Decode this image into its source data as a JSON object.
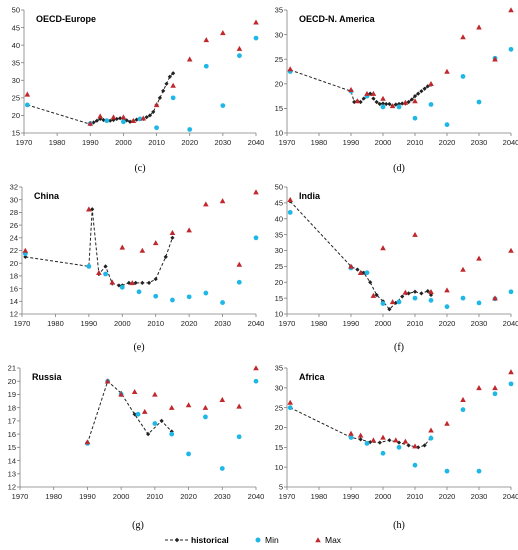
{
  "chart_data": [
    {
      "type": "scatter",
      "title": "OECD-Europe",
      "panel_label": "(c)",
      "xlim": [
        1970,
        2040
      ],
      "ylim": [
        15,
        50
      ],
      "xticks": [
        1970,
        1980,
        1990,
        2000,
        2010,
        2020,
        2030,
        2040
      ],
      "yticks": [
        15,
        20,
        25,
        30,
        35,
        40,
        45,
        50
      ],
      "grid": false,
      "series": [
        {
          "name": "historical",
          "kind": "line",
          "x": [
            1971,
            1990,
            1991,
            1992,
            1993,
            1994,
            1995,
            1996,
            1997,
            1998,
            1999,
            2000,
            2001,
            2002,
            2003,
            2004,
            2005,
            2006,
            2007,
            2008,
            2009,
            2010,
            2011,
            2012,
            2013,
            2014,
            2015
          ],
          "y": [
            23,
            17.5,
            18,
            18.5,
            19,
            18.7,
            18.4,
            18.5,
            18.7,
            19,
            19.2,
            19,
            18.6,
            18.2,
            18.5,
            18.8,
            19,
            19,
            19.5,
            20,
            21,
            23,
            25,
            27,
            29,
            31,
            32
          ]
        },
        {
          "name": "Min",
          "kind": "marker",
          "x": [
            1971,
            1990,
            1995,
            2000,
            2005,
            2010,
            2015,
            2020,
            2025,
            2030,
            2035,
            2040
          ],
          "y": [
            23,
            17.7,
            18.5,
            18.2,
            19,
            16.5,
            25,
            16,
            34,
            22.8,
            37,
            42
          ]
        },
        {
          "name": "Max",
          "kind": "marker",
          "x": [
            1971,
            1990,
            1993,
            1997,
            2000,
            2003,
            2006,
            2010,
            2015,
            2020,
            2025,
            2030,
            2035,
            2040
          ],
          "y": [
            26,
            17.7,
            19.8,
            19.5,
            19.5,
            18.5,
            19.2,
            23,
            28.5,
            36,
            41.5,
            43.5,
            39,
            46.5
          ]
        }
      ]
    },
    {
      "type": "scatter",
      "title": "OECD-N. America",
      "panel_label": "(d)",
      "xlim": [
        1970,
        2040
      ],
      "ylim": [
        10,
        35
      ],
      "xticks": [
        1970,
        1980,
        1990,
        2000,
        2010,
        2020,
        2030,
        2040
      ],
      "yticks": [
        10,
        15,
        20,
        25,
        30,
        35
      ],
      "grid": false,
      "series": [
        {
          "name": "historical",
          "kind": "line",
          "x": [
            1971,
            1990,
            1991,
            1992,
            1993,
            1994,
            1995,
            1996,
            1997,
            1998,
            1999,
            2000,
            2001,
            2002,
            2003,
            2004,
            2005,
            2006,
            2007,
            2008,
            2009,
            2010,
            2011,
            2012,
            2013,
            2014,
            2015
          ],
          "y": [
            22.8,
            18.5,
            16.3,
            16.5,
            16.3,
            17,
            17.5,
            18,
            17,
            16.3,
            15.9,
            16,
            15.9,
            15.9,
            15.5,
            15.8,
            15.9,
            16,
            16,
            16.3,
            16.8,
            17.5,
            18,
            18.5,
            19,
            19.5,
            19.8
          ]
        },
        {
          "name": "Min",
          "kind": "marker",
          "x": [
            1971,
            1990,
            1995,
            2000,
            2005,
            2010,
            2015,
            2020,
            2025,
            2030,
            2035,
            2040
          ],
          "y": [
            22.5,
            18.5,
            17.5,
            15.3,
            15.3,
            13,
            15.8,
            11.7,
            21.5,
            16.3,
            25.2,
            27
          ]
        },
        {
          "name": "Max",
          "kind": "marker",
          "x": [
            1971,
            1990,
            1992,
            1995,
            1997,
            2000,
            2003,
            2007,
            2010,
            2015,
            2020,
            2025,
            2030,
            2035,
            2040
          ],
          "y": [
            23,
            18.8,
            16.5,
            18,
            18,
            17,
            15.5,
            16.2,
            16.5,
            20,
            22.5,
            29.5,
            31.5,
            25,
            35
          ]
        }
      ]
    },
    {
      "type": "scatter",
      "title": "China",
      "panel_label": "(e)",
      "xlim": [
        1970,
        2040
      ],
      "ylim": [
        12,
        32
      ],
      "xticks": [
        1970,
        1980,
        1990,
        2000,
        2010,
        2020,
        2030,
        2040
      ],
      "yticks": [
        12,
        14,
        16,
        18,
        20,
        22,
        24,
        26,
        28,
        30,
        32
      ],
      "grid": false,
      "series": [
        {
          "name": "historical",
          "kind": "line",
          "x": [
            1971,
            1990,
            1991,
            1993,
            1995,
            1997,
            1999,
            2000,
            2002,
            2004,
            2006,
            2008,
            2010,
            2013,
            2015
          ],
          "y": [
            21,
            19.5,
            28.5,
            18.3,
            19.5,
            16.8,
            16.5,
            16.5,
            16.9,
            16.9,
            16.9,
            16.9,
            17.5,
            21,
            24
          ]
        },
        {
          "name": "Min",
          "kind": "marker",
          "x": [
            1971,
            1990,
            1995,
            2000,
            2005,
            2010,
            2015,
            2020,
            2025,
            2030,
            2035,
            2040
          ],
          "y": [
            21.5,
            19.5,
            18.3,
            16.2,
            15.5,
            14.8,
            14.2,
            14.7,
            15.3,
            13.8,
            17,
            24
          ]
        },
        {
          "name": "Max",
          "kind": "marker",
          "x": [
            1971,
            1990,
            1993,
            1997,
            2000,
            2003,
            2006,
            2010,
            2015,
            2020,
            2025,
            2030,
            2035,
            2040
          ],
          "y": [
            22,
            28.5,
            18.5,
            17,
            22.5,
            16.9,
            22,
            23.2,
            24.8,
            25.2,
            29.3,
            29.8,
            19.8,
            31.2
          ]
        }
      ]
    },
    {
      "type": "scatter",
      "title": "India",
      "panel_label": "(f)",
      "xlim": [
        1970,
        2040
      ],
      "ylim": [
        10,
        50
      ],
      "xticks": [
        1970,
        1980,
        1990,
        2000,
        2010,
        2020,
        2030,
        2040
      ],
      "yticks": [
        10,
        15,
        20,
        25,
        30,
        35,
        40,
        45,
        50
      ],
      "grid": false,
      "series": [
        {
          "name": "historical",
          "kind": "line",
          "x": [
            1971,
            1990,
            1992,
            1994,
            1996,
            1998,
            2000,
            2002,
            2004,
            2006,
            2008,
            2010,
            2012,
            2014,
            2015
          ],
          "y": [
            45.5,
            25,
            24,
            23,
            20,
            16,
            14,
            11.5,
            13.5,
            15.5,
            16.5,
            17,
            16.5,
            17.2,
            16
          ]
        },
        {
          "name": "Min",
          "kind": "marker",
          "x": [
            1971,
            1990,
            1995,
            2000,
            2005,
            2010,
            2015,
            2020,
            2025,
            2030,
            2035,
            2040
          ],
          "y": [
            42,
            24.5,
            23,
            13.3,
            13.8,
            15,
            14.3,
            12.3,
            15,
            13.5,
            14.8,
            17
          ]
        },
        {
          "name": "Max",
          "kind": "marker",
          "x": [
            1971,
            1990,
            1993,
            1997,
            2000,
            2003,
            2007,
            2010,
            2015,
            2020,
            2025,
            2030,
            2035,
            2040
          ],
          "y": [
            46,
            25,
            23,
            15.8,
            30.8,
            13.8,
            16.8,
            35,
            17,
            17.5,
            24,
            27.5,
            15,
            30
          ]
        }
      ]
    },
    {
      "type": "scatter",
      "title": "Russia",
      "panel_label": "(g)",
      "xlim": [
        1970,
        2040
      ],
      "ylim": [
        12,
        21
      ],
      "xticks": [
        1970,
        1980,
        1990,
        2000,
        2010,
        2020,
        2030,
        2040
      ],
      "yticks": [
        12,
        13,
        14,
        15,
        16,
        17,
        18,
        19,
        20,
        21
      ],
      "grid": false,
      "series": [
        {
          "name": "historical",
          "kind": "line",
          "x": [
            1990,
            1996,
            2000,
            2004,
            2008,
            2012,
            2015
          ],
          "y": [
            15.3,
            20,
            19.1,
            17.5,
            16,
            17,
            16.2
          ]
        },
        {
          "name": "Min",
          "kind": "marker",
          "x": [
            1990,
            1996,
            2000,
            2005,
            2010,
            2015,
            2020,
            2025,
            2030,
            2035,
            2040
          ],
          "y": [
            15.3,
            20,
            19,
            17.5,
            16.8,
            16,
            14.5,
            17.3,
            13.4,
            15.8,
            20
          ]
        },
        {
          "name": "Max",
          "kind": "marker",
          "x": [
            1990,
            1996,
            2000,
            2004,
            2007,
            2010,
            2015,
            2020,
            2025,
            2030,
            2035,
            2040
          ],
          "y": [
            15.4,
            20,
            19,
            19.2,
            17.7,
            19,
            18,
            18.2,
            18,
            18.6,
            18.1,
            21
          ]
        }
      ]
    },
    {
      "type": "scatter",
      "title": "Africa",
      "panel_label": "(h)",
      "xlim": [
        1970,
        2040
      ],
      "ylim": [
        5,
        35
      ],
      "xticks": [
        1970,
        1980,
        1990,
        2000,
        2010,
        2020,
        2030,
        2040
      ],
      "yticks": [
        5,
        10,
        15,
        20,
        25,
        30,
        35
      ],
      "grid": false,
      "series": [
        {
          "name": "historical",
          "kind": "line",
          "x": [
            1971,
            1990,
            1993,
            1996,
            1999,
            2002,
            2005,
            2008,
            2011,
            2013,
            2015
          ],
          "y": [
            25,
            17.5,
            17,
            16.3,
            16.2,
            16.8,
            16.2,
            15.5,
            15,
            15.5,
            17.5
          ]
        },
        {
          "name": "Min",
          "kind": "marker",
          "x": [
            1971,
            1990,
            1995,
            2000,
            2005,
            2010,
            2015,
            2020,
            2025,
            2030,
            2035,
            2040
          ],
          "y": [
            25,
            17.5,
            16,
            13.5,
            15,
            10.5,
            17.3,
            9,
            24.5,
            9,
            28.5,
            31
          ]
        },
        {
          "name": "Max",
          "kind": "marker",
          "x": [
            1971,
            1990,
            1993,
            1997,
            2000,
            2004,
            2007,
            2010,
            2015,
            2020,
            2025,
            2030,
            2035,
            2040
          ],
          "y": [
            26.3,
            18.5,
            18,
            16.8,
            17.5,
            16.8,
            16.5,
            15.3,
            19.3,
            21,
            27,
            30,
            30,
            34
          ]
        }
      ]
    }
  ],
  "legend": {
    "items": [
      {
        "label": "historical",
        "symbol": "dashed-line-diamond"
      },
      {
        "label": "Min",
        "symbol": "circle"
      },
      {
        "label": "Max",
        "symbol": "triangle"
      }
    ]
  },
  "colors": {
    "historical": "#222222",
    "min": "#1fb7e6",
    "max": "#c0282d",
    "axis": "#7f7f7f"
  }
}
